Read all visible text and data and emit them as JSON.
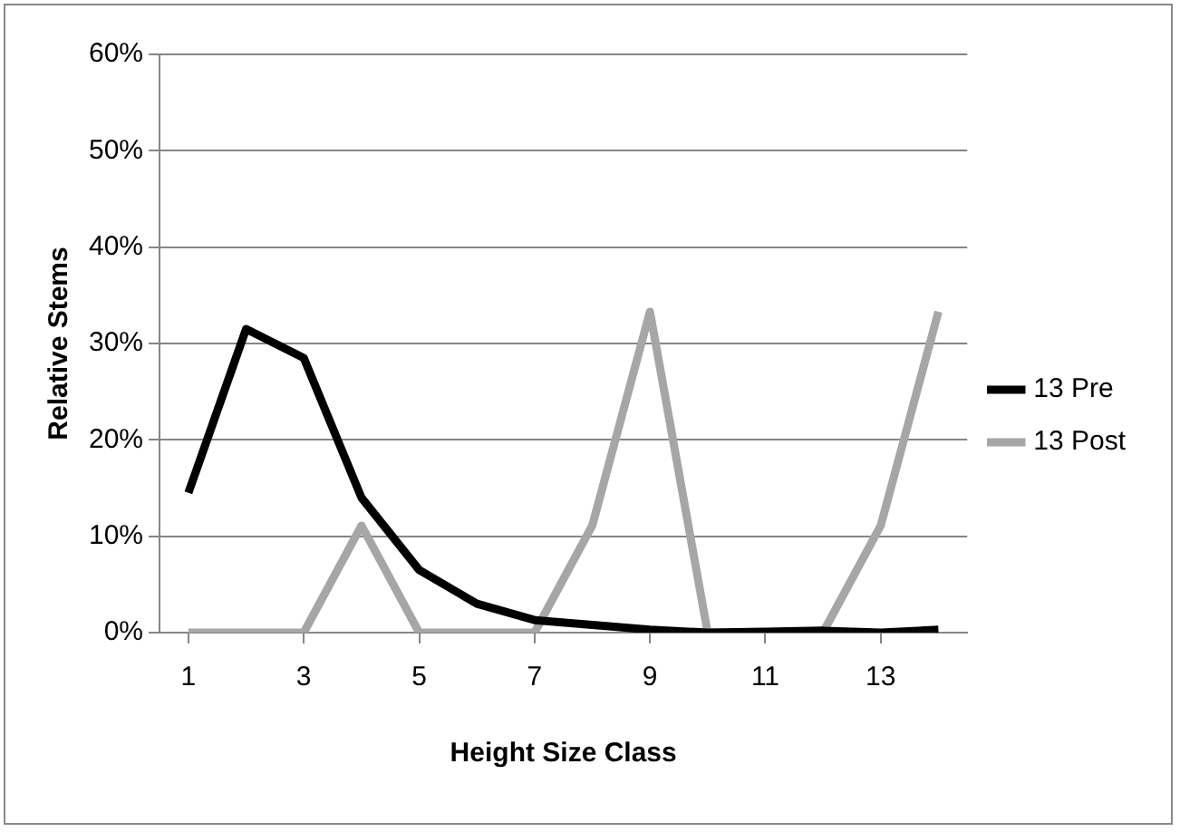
{
  "chart_data": {
    "type": "line",
    "xlabel": "Height Size Class",
    "ylabel": "Relative Stems",
    "x": [
      1,
      2,
      3,
      4,
      5,
      6,
      7,
      8,
      9,
      10,
      11,
      12,
      13,
      14
    ],
    "xlim": [
      0.5,
      14.5
    ],
    "xticks": [
      1,
      3,
      5,
      7,
      9,
      11,
      13
    ],
    "series": [
      {
        "name": "13 Pre",
        "color": "#000000",
        "values": [
          14.5,
          31.5,
          28.5,
          14,
          6.5,
          3,
          1.3,
          0.8,
          0.3,
          0,
          0.1,
          0.2,
          0,
          0.3
        ]
      },
      {
        "name": "13 Post",
        "color": "#a6a6a6",
        "values": [
          0,
          0,
          0,
          11.1,
          0,
          0,
          0,
          11.1,
          33.3,
          0,
          0,
          0,
          11.1,
          33.3
        ]
      }
    ],
    "ylim": [
      0,
      60
    ],
    "yticks": [
      {
        "value": 0,
        "label": "0%"
      },
      {
        "value": 10,
        "label": "10%"
      },
      {
        "value": 20,
        "label": "20%"
      },
      {
        "value": 30,
        "label": "30%"
      },
      {
        "value": 40,
        "label": "40%"
      },
      {
        "value": 50,
        "label": "50%"
      },
      {
        "value": 60,
        "label": "60%"
      }
    ],
    "grid": "y",
    "legend": "right",
    "marker": "none",
    "line_style": "solid"
  }
}
